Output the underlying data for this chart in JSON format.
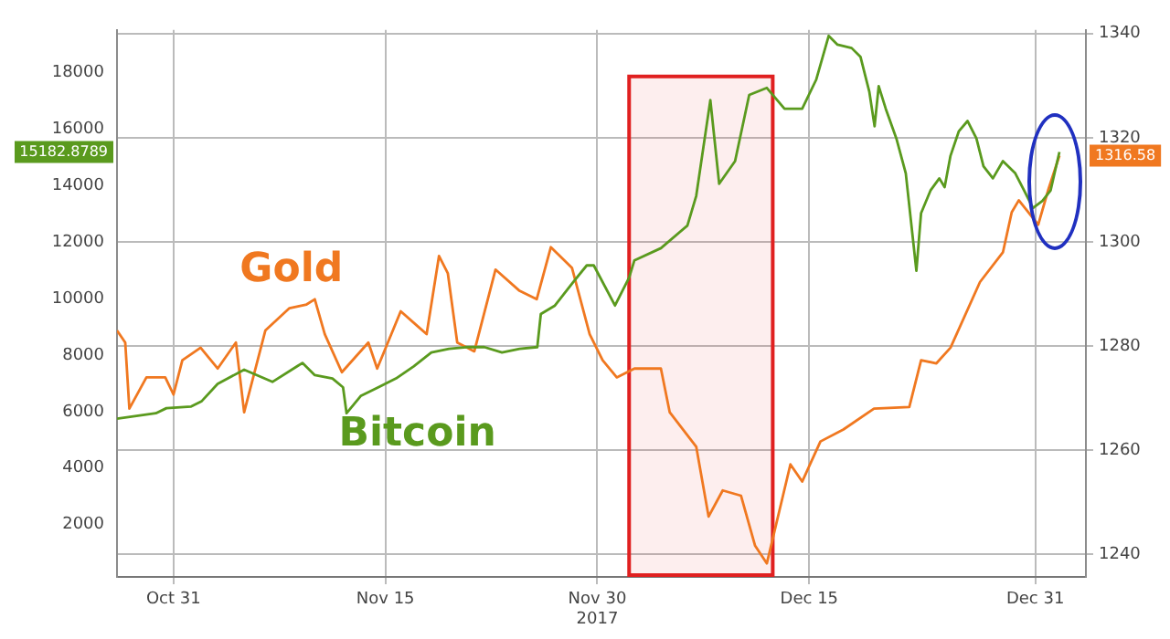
{
  "chart_data": {
    "type": "line",
    "series": [
      {
        "name": "Bitcoin",
        "color": "#5a9a1e",
        "x": [
          "2017-10-27T00:00",
          "2017-10-29T18:00",
          "2017-10-30T12:00",
          "2017-11-01T06:00",
          "2017-11-02T00:00",
          "2017-11-03T03:00",
          "2017-11-05T00:00",
          "2017-11-07T00:00",
          "2017-11-08T18:00",
          "2017-11-09T03:00",
          "2017-11-10T00:00",
          "2017-11-11T06:00",
          "2017-11-12T00:00",
          "2017-11-12T06:00",
          "2017-11-13T06:00",
          "2017-11-14T12:00",
          "2017-11-15T18:00",
          "2017-11-17T00:00",
          "2017-11-18T06:00",
          "2017-11-19T12:00",
          "2017-11-20T18:00",
          "2017-11-22T00:00",
          "2017-11-23T06:00",
          "2017-11-24T12:00",
          "2017-11-25T18:00",
          "2017-11-26T00:00",
          "2017-11-27T00:00",
          "2017-11-28T06:00",
          "2017-11-29T06:00",
          "2017-11-29T18:00",
          "2017-12-01T06:00",
          "2017-12-02T06:00",
          "2017-12-02T15:00",
          "2017-12-04T12:00",
          "2017-12-06T09:00",
          "2017-12-07T00:00",
          "2017-12-08T00:00",
          "2017-12-08T15:00",
          "2017-12-09T18:00",
          "2017-12-10T18:00",
          "2017-12-12T00:00",
          "2017-12-13T06:00",
          "2017-12-14T12:00",
          "2017-12-15T12:00",
          "2017-12-16T09:00",
          "2017-12-17T00:00",
          "2017-12-18T00:00",
          "2017-12-18T15:00",
          "2017-12-19T06:00",
          "2017-12-19T15:00",
          "2017-12-19T22:00",
          "2017-12-20T10:00",
          "2017-12-21T04:00",
          "2017-12-21T20:00",
          "2017-12-22T14:00",
          "2017-12-22T22:00",
          "2017-12-23T14:00",
          "2017-12-24T05:00",
          "2017-12-24T14:00",
          "2017-12-25T00:00",
          "2017-12-25T14:00",
          "2017-12-26T05:00",
          "2017-12-26T20:00",
          "2017-12-27T08:00",
          "2017-12-28T00:00",
          "2017-12-28T17:00",
          "2017-12-29T14:00",
          "2017-12-30T05:00",
          "2017-12-30T20:00",
          "2017-12-31T12:00",
          "2018-01-01T02:00",
          "2018-01-01T17:00"
        ],
        "values": [
          5750,
          5940,
          6120,
          6180,
          6370,
          6980,
          7480,
          7050,
          7600,
          7720,
          7290,
          7170,
          6860,
          5940,
          6550,
          6860,
          7170,
          7600,
          8090,
          8220,
          8280,
          8280,
          8090,
          8220,
          8280,
          9450,
          9750,
          10550,
          11170,
          11170,
          9750,
          10740,
          11350,
          11780,
          12580,
          13630,
          17020,
          14060,
          14860,
          17200,
          17450,
          16710,
          16710,
          17750,
          19290,
          18980,
          18860,
          18550,
          17320,
          16090,
          17510,
          16710,
          15660,
          14430,
          10980,
          13020,
          13820,
          14250,
          13940,
          15050,
          15910,
          16280,
          15660,
          14680,
          14250,
          14860,
          14430,
          13820,
          13200,
          13450,
          13820,
          15182.8789
        ]
      },
      {
        "name": "Gold",
        "color": "#f07820",
        "axis": "y2",
        "x": [
          "2017-10-27T00:00",
          "2017-10-27T14:00",
          "2017-10-27T21:00",
          "2017-10-29T02:00",
          "2017-10-30T10:00",
          "2017-10-31T00:00",
          "2017-10-31T15:00",
          "2017-11-01T22:00",
          "2017-11-03T03:00",
          "2017-11-04T10:00",
          "2017-11-05T00:00",
          "2017-11-06T12:00",
          "2017-11-08T05:00",
          "2017-11-09T10:00",
          "2017-11-10T00:00",
          "2017-11-10T17:00",
          "2017-11-11T22:00",
          "2017-11-13T19:00",
          "2017-11-14T10:00",
          "2017-11-16T02:00",
          "2017-11-17T05:00",
          "2017-11-17T22:00",
          "2017-11-18T19:00",
          "2017-11-19T10:00",
          "2017-11-20T02:00",
          "2017-11-21T07:00",
          "2017-11-22T19:00",
          "2017-11-24T11:00",
          "2017-11-25T17:00",
          "2017-11-26T17:00",
          "2017-11-28T05:00",
          "2017-11-29T11:00",
          "2017-11-30T09:00",
          "2017-12-01T09:00",
          "2017-12-02T15:00",
          "2017-12-04T12:00",
          "2017-12-05T03:00",
          "2017-12-07T00:00",
          "2017-12-07T21:00",
          "2017-12-08T21:00",
          "2017-12-10T04:00",
          "2017-12-11T04:00",
          "2017-12-12T00:00",
          "2017-12-13T16:00",
          "2017-12-14T12:00",
          "2017-12-15T19:00",
          "2017-12-17T10:00",
          "2017-12-19T14:00",
          "2017-12-22T02:00",
          "2017-12-22T22:00",
          "2017-12-24T00:00",
          "2017-12-25T00:00",
          "2017-12-27T02:00",
          "2017-12-28T17:00",
          "2017-12-29T08:00",
          "2017-12-29T20:00",
          "2017-12-31T05:00",
          "2017-12-31T22:00",
          "2018-01-01T17:00"
        ],
        "values": [
          1283,
          1280.7,
          1268,
          1274,
          1274,
          1270.7,
          1277.3,
          1279.7,
          1275.7,
          1280.7,
          1267.3,
          1283,
          1287.3,
          1288,
          1289,
          1282.3,
          1275,
          1280.7,
          1275.7,
          1286.7,
          1284,
          1282.3,
          1297.3,
          1294,
          1280.7,
          1279,
          1294.7,
          1290.7,
          1289,
          1299,
          1295,
          1282.3,
          1277.3,
          1274,
          1275.7,
          1275.7,
          1267.3,
          1260.7,
          1247.3,
          1252.3,
          1251.3,
          1241.7,
          1238.3,
          1257.3,
          1254,
          1261.7,
          1264,
          1268,
          1268.3,
          1277.3,
          1276.7,
          1279.7,
          1292.3,
          1298,
          1305.7,
          1308,
          1303.3,
          1310,
          1316.58
        ]
      }
    ],
    "xlim": [
      "2017-10-27T00:00",
      "2018-01-03T14:00"
    ],
    "xticks": [
      {
        "value": "2017-10-31T00:00",
        "label": "Oct 31"
      },
      {
        "value": "2017-11-15T00:00",
        "label": "Nov 15"
      },
      {
        "value": "2017-11-30T00:00",
        "label": "Nov 30\n2017"
      },
      {
        "value": "2017-12-15T00:00",
        "label": "Dec 15"
      },
      {
        "value": "2017-12-31T00:00",
        "label": "Dec 31"
      }
    ],
    "ylim": [
      150,
      19500
    ],
    "yticks": [
      2000,
      4000,
      6000,
      8000,
      10000,
      12000,
      14000,
      16000,
      18000
    ],
    "y2lim": [
      1235.7,
      1340.7
    ],
    "y2ticks": [
      1240,
      1260,
      1280,
      1300,
      1320,
      1340
    ],
    "grid": true,
    "legend": false,
    "bands": [
      {
        "axis": "x",
        "from": "2017-12-02T06:00",
        "to": "2017-12-12T10:00",
        "color": "#e02020"
      }
    ],
    "annotations": [
      "15182.8789",
      "1316.58"
    ]
  }
}
